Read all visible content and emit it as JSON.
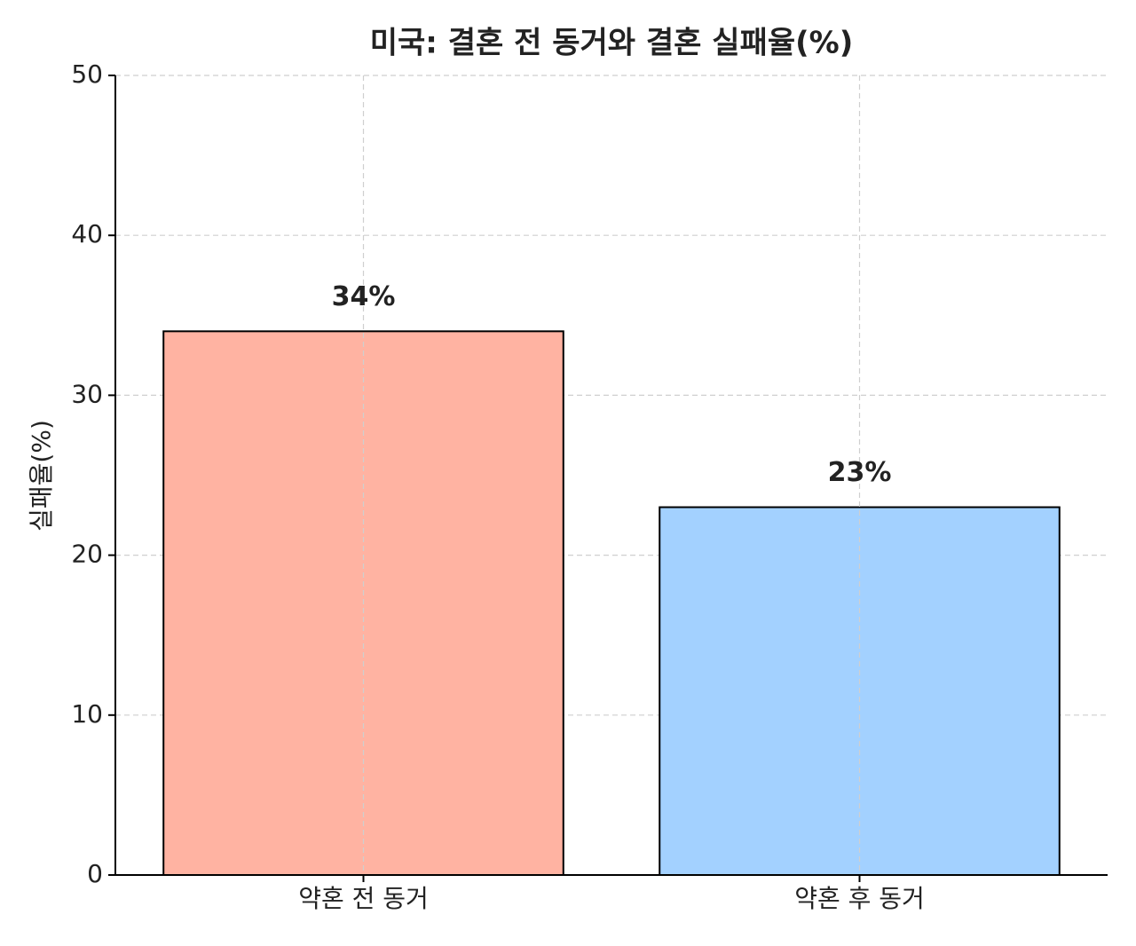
{
  "chart_data": {
    "type": "bar",
    "title": "미국: 결혼 전 동거와 결혼 실패율(%)",
    "y_label": "실패율(%)",
    "categories": [
      "약혼 전 동거",
      "약혼 후 동거"
    ],
    "values": [
      34,
      23
    ],
    "value_labels": [
      "34%",
      "23%"
    ],
    "colors": [
      "#ffb3a2",
      "#a3d1ff"
    ],
    "ylim": [
      0,
      50
    ],
    "yticks": [
      0,
      10,
      20,
      30,
      40,
      50
    ],
    "grid": true
  }
}
